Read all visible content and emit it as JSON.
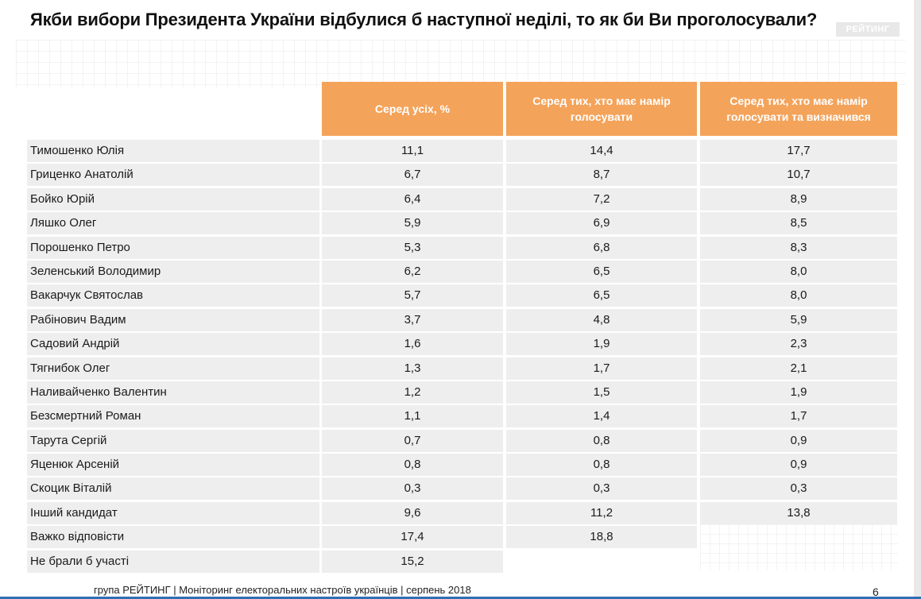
{
  "title": "Якби вибори Президента України відбулися б наступної неділі, то як би Ви проголосували?",
  "logo": "РЕЙТИНГ",
  "chart_data": {
    "type": "table",
    "columns": [
      "Серед усіх, %",
      "Серед тих, хто має намір голосувати",
      "Серед тих, хто має намір голосувати та визначився"
    ],
    "rows": [
      {
        "name": "Тимошенко Юлія",
        "values": [
          "11,1",
          "14,4",
          "17,7"
        ]
      },
      {
        "name": "Гриценко Анатолій",
        "values": [
          "6,7",
          "8,7",
          "10,7"
        ]
      },
      {
        "name": "Бойко Юрій",
        "values": [
          "6,4",
          "7,2",
          "8,9"
        ]
      },
      {
        "name": "Ляшко Олег",
        "values": [
          "5,9",
          "6,9",
          "8,5"
        ]
      },
      {
        "name": "Порошенко Петро",
        "values": [
          "5,3",
          "6,8",
          "8,3"
        ]
      },
      {
        "name": "Зеленський Володимир",
        "values": [
          "6,2",
          "6,5",
          "8,0"
        ]
      },
      {
        "name": "Вакарчук Святослав",
        "values": [
          "5,7",
          "6,5",
          "8,0"
        ]
      },
      {
        "name": "Рабінович Вадим",
        "values": [
          "3,7",
          "4,8",
          "5,9"
        ]
      },
      {
        "name": "Садовий Андрій",
        "values": [
          "1,6",
          "1,9",
          "2,3"
        ]
      },
      {
        "name": "Тягнибок Олег",
        "values": [
          "1,3",
          "1,7",
          "2,1"
        ]
      },
      {
        "name": "Наливайченко Валентин",
        "values": [
          "1,2",
          "1,5",
          "1,9"
        ]
      },
      {
        "name": "Безсмертний Роман",
        "values": [
          "1,1",
          "1,4",
          "1,7"
        ]
      },
      {
        "name": "Тарута Сергій",
        "values": [
          "0,7",
          "0,8",
          "0,9"
        ]
      },
      {
        "name": "Яценюк Арсеній",
        "values": [
          "0,8",
          "0,8",
          "0,9"
        ]
      },
      {
        "name": "Скоцик Віталій",
        "values": [
          "0,3",
          "0,3",
          "0,3"
        ]
      },
      {
        "name": "Інший кандидат",
        "values": [
          "9,6",
          "11,2",
          "13,8"
        ]
      },
      {
        "name": "Важко відповісти",
        "values": [
          "17,4",
          "18,8"
        ]
      },
      {
        "name": "Не брали б участі",
        "values": [
          "15,2"
        ]
      }
    ]
  },
  "footer": "група РЕЙТИНГ | Моніторинг електоральних настроїв українців | серпень 2018",
  "page_number": "6",
  "colors": {
    "header": "#f4a35a",
    "row_bg": "#eeeeee",
    "bottom_bar": "#2f6fb5"
  }
}
